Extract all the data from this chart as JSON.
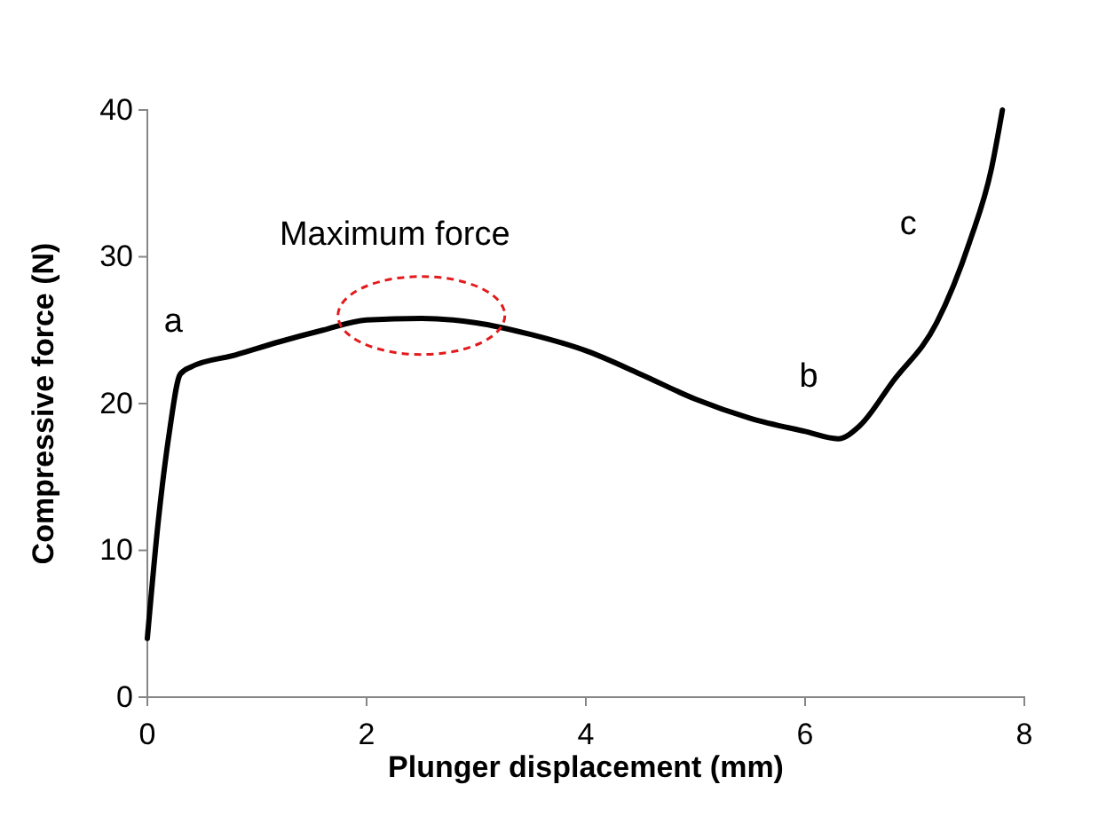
{
  "chart_data": {
    "type": "line",
    "xlabel": "Plunger displacement (mm)",
    "ylabel": "Compressive force (N)",
    "xlim": [
      0,
      8
    ],
    "ylim": [
      0,
      40
    ],
    "xticks": [
      0,
      2,
      4,
      6,
      8
    ],
    "yticks": [
      0,
      10,
      20,
      30,
      40
    ],
    "grid": false,
    "marker": "none",
    "line_style": "solid",
    "series": [
      {
        "color": "#000000",
        "x": [
          0,
          0.1,
          0.2,
          0.3,
          0.4,
          0.8,
          1.2,
          1.6,
          2.0,
          2.5,
          3.0,
          3.5,
          4.0,
          4.5,
          5.0,
          5.5,
          6.0,
          6.3,
          6.5,
          6.8,
          7.2,
          7.5,
          7.7,
          7.8
        ],
        "values": [
          4,
          12,
          18,
          22,
          22.5,
          23.3,
          24.2,
          25,
          25.7,
          25.8,
          25.5,
          24.7,
          23.6,
          22,
          20.3,
          19,
          18.1,
          17.6,
          18.5,
          21.5,
          25.5,
          31,
          36,
          40
        ]
      }
    ],
    "annotations": [
      {
        "text": "a",
        "x": 0.4,
        "y": 22.5
      },
      {
        "text": "Maximum force",
        "x": 2.5,
        "y": 26
      },
      {
        "text": "b",
        "x": 6.0,
        "y": 18.1
      },
      {
        "text": "c",
        "x": 7.2,
        "y": 25.5
      }
    ]
  }
}
